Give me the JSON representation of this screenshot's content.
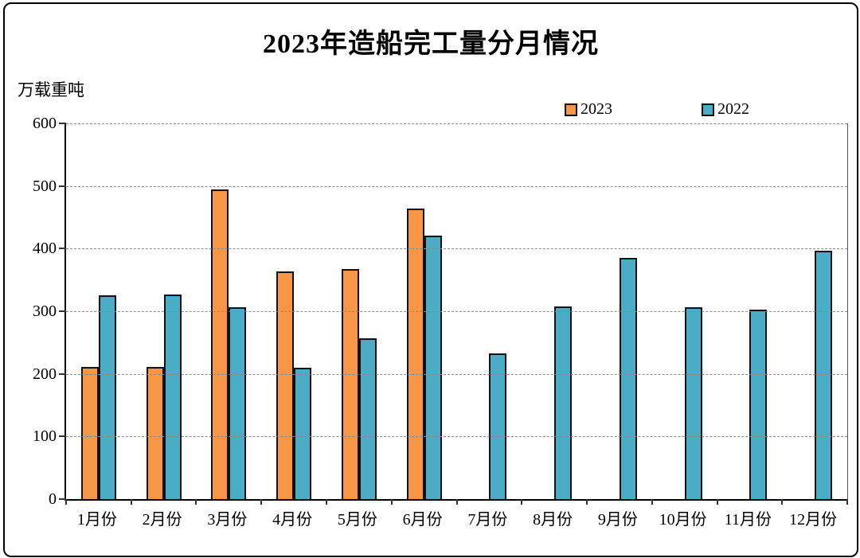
{
  "title": "2023年造船完工量分月情况",
  "y_axis": {
    "unit": "万载重吨",
    "ticks": [
      "600",
      "500",
      "400",
      "300",
      "200",
      "100",
      "0"
    ],
    "max": 600
  },
  "legend": [
    {
      "label": "2023",
      "color": "#F79646"
    },
    {
      "label": "2022",
      "color": "#4BACC6"
    }
  ],
  "colors": {
    "bar_border": "#111111",
    "gridline": "#8a8a8a",
    "axis": "#000000"
  },
  "chart_data": {
    "type": "bar",
    "title": "2023年造船完工量分月情况",
    "xlabel": "",
    "ylabel": "万载重吨",
    "ylim": [
      0,
      600
    ],
    "grid": "horizontal-dashed",
    "legend_position": "top-right",
    "categories": [
      "1月份",
      "2月份",
      "3月份",
      "4月份",
      "5月份",
      "6月份",
      "7月份",
      "8月份",
      "9月份",
      "10月份",
      "11月份",
      "12月份"
    ],
    "series": [
      {
        "name": "2023",
        "color": "#F79646",
        "values": [
          211,
          211,
          494,
          363,
          368,
          464,
          null,
          null,
          null,
          null,
          null,
          null
        ]
      },
      {
        "name": "2022",
        "color": "#4BACC6",
        "values": [
          325,
          327,
          307,
          210,
          257,
          421,
          233,
          308,
          385,
          306,
          302,
          396
        ]
      }
    ]
  }
}
